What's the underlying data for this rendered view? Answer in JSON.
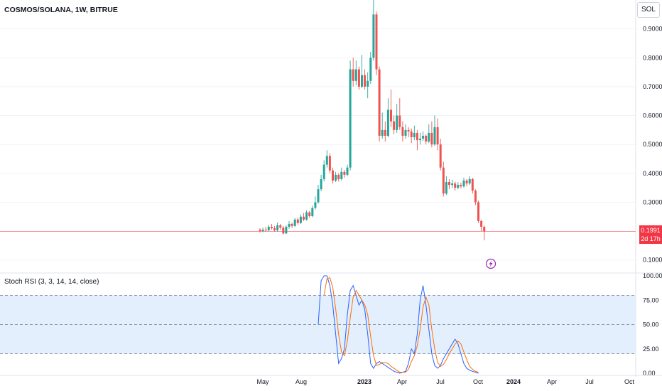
{
  "header": {
    "title": "COSMOS/SOLANA, 1W, BITRUE",
    "symbol_button": "SOL"
  },
  "price_tag": {
    "price": "0.1991",
    "countdown": "2d 17h"
  },
  "indicator": {
    "label": "Stoch RSI (3, 3, 14, 14, close)"
  },
  "colors": {
    "up": "#26a69a",
    "down": "#ef5350",
    "k_line": "#2962ff",
    "d_line": "#ff6d00",
    "band_fill": "#e3effd",
    "last_price_line": "#f23645",
    "flash_icon": "#9c27b0"
  },
  "icons": {
    "flash": "lightning-icon"
  },
  "chart_data": [
    {
      "type": "candlestick",
      "y_ticks": [
        "0.1000",
        "0.2000",
        "0.3000",
        "0.4000",
        "0.5000",
        "0.6000",
        "0.7000",
        "0.8000",
        "0.9000"
      ],
      "y_tick_values": [
        0.1,
        0.2,
        0.3,
        0.4,
        0.5,
        0.6,
        0.7,
        0.8,
        0.9
      ],
      "ylim": [
        0.06,
        1.0
      ],
      "x_ticks": [
        {
          "label": "May",
          "bold": false
        },
        {
          "label": "Aug",
          "bold": false
        },
        {
          "label": "2023",
          "bold": true
        },
        {
          "label": "Apr",
          "bold": false
        },
        {
          "label": "Jul",
          "bold": false
        },
        {
          "label": "Oct",
          "bold": false
        },
        {
          "label": "2024",
          "bold": true
        },
        {
          "label": "Apr",
          "bold": false
        },
        {
          "label": "Jul",
          "bold": false
        },
        {
          "label": "Oct",
          "bold": false
        }
      ],
      "last_price": 0.1991,
      "candles": [
        [
          0.205,
          0.2,
          0.21,
          0.195
        ],
        [
          0.2,
          0.205,
          0.212,
          0.196
        ],
        [
          0.205,
          0.203,
          0.215,
          0.198
        ],
        [
          0.203,
          0.215,
          0.222,
          0.2
        ],
        [
          0.215,
          0.21,
          0.225,
          0.205
        ],
        [
          0.21,
          0.203,
          0.218,
          0.198
        ],
        [
          0.203,
          0.22,
          0.23,
          0.198
        ],
        [
          0.22,
          0.212,
          0.225,
          0.205
        ],
        [
          0.212,
          0.192,
          0.218,
          0.188
        ],
        [
          0.192,
          0.215,
          0.22,
          0.19
        ],
        [
          0.215,
          0.225,
          0.235,
          0.208
        ],
        [
          0.225,
          0.218,
          0.23,
          0.21
        ],
        [
          0.218,
          0.24,
          0.245,
          0.214
        ],
        [
          0.24,
          0.228,
          0.247,
          0.222
        ],
        [
          0.228,
          0.25,
          0.258,
          0.225
        ],
        [
          0.25,
          0.24,
          0.262,
          0.235
        ],
        [
          0.24,
          0.265,
          0.272,
          0.236
        ],
        [
          0.265,
          0.252,
          0.27,
          0.246
        ],
        [
          0.252,
          0.28,
          0.288,
          0.248
        ],
        [
          0.28,
          0.3,
          0.32,
          0.275
        ],
        [
          0.3,
          0.345,
          0.36,
          0.295
        ],
        [
          0.345,
          0.38,
          0.395,
          0.338
        ],
        [
          0.38,
          0.43,
          0.445,
          0.372
        ],
        [
          0.43,
          0.46,
          0.48,
          0.42
        ],
        [
          0.46,
          0.41,
          0.47,
          0.4
        ],
        [
          0.41,
          0.375,
          0.42,
          0.365
        ],
        [
          0.375,
          0.395,
          0.405,
          0.37
        ],
        [
          0.395,
          0.38,
          0.4,
          0.372
        ],
        [
          0.38,
          0.405,
          0.42,
          0.375
        ],
        [
          0.405,
          0.395,
          0.412,
          0.385
        ],
        [
          0.395,
          0.42,
          0.43,
          0.39
        ],
        [
          0.42,
          0.76,
          0.79,
          0.41
        ],
        [
          0.76,
          0.72,
          0.8,
          0.7
        ],
        [
          0.72,
          0.76,
          0.79,
          0.705
        ],
        [
          0.76,
          0.7,
          0.77,
          0.69
        ],
        [
          0.7,
          0.74,
          0.81,
          0.695
        ],
        [
          0.74,
          0.7,
          0.76,
          0.69
        ],
        [
          0.7,
          0.72,
          0.75,
          0.66
        ],
        [
          0.72,
          0.8,
          0.82,
          0.71
        ],
        [
          0.8,
          0.95,
          1.0,
          0.79
        ],
        [
          0.95,
          0.76,
          0.96,
          0.74
        ],
        [
          0.76,
          0.53,
          0.77,
          0.51
        ],
        [
          0.53,
          0.55,
          0.61,
          0.52
        ],
        [
          0.55,
          0.53,
          0.58,
          0.51
        ],
        [
          0.53,
          0.62,
          0.66,
          0.525
        ],
        [
          0.62,
          0.58,
          0.69,
          0.56
        ],
        [
          0.58,
          0.55,
          0.6,
          0.535
        ],
        [
          0.55,
          0.6,
          0.64,
          0.54
        ],
        [
          0.6,
          0.56,
          0.66,
          0.55
        ],
        [
          0.56,
          0.53,
          0.58,
          0.51
        ],
        [
          0.53,
          0.55,
          0.57,
          0.52
        ],
        [
          0.55,
          0.545,
          0.56,
          0.525
        ],
        [
          0.545,
          0.525,
          0.555,
          0.505
        ],
        [
          0.525,
          0.54,
          0.565,
          0.515
        ],
        [
          0.54,
          0.515,
          0.55,
          0.48
        ],
        [
          0.515,
          0.52,
          0.54,
          0.5
        ],
        [
          0.52,
          0.53,
          0.545,
          0.512
        ],
        [
          0.53,
          0.51,
          0.535,
          0.5
        ],
        [
          0.51,
          0.54,
          0.57,
          0.505
        ],
        [
          0.54,
          0.5,
          0.58,
          0.49
        ],
        [
          0.5,
          0.56,
          0.6,
          0.495
        ],
        [
          0.56,
          0.5,
          0.59,
          0.48
        ],
        [
          0.5,
          0.42,
          0.52,
          0.41
        ],
        [
          0.42,
          0.33,
          0.44,
          0.32
        ],
        [
          0.33,
          0.37,
          0.39,
          0.325
        ],
        [
          0.37,
          0.36,
          0.38,
          0.345
        ],
        [
          0.36,
          0.365,
          0.378,
          0.35
        ],
        [
          0.365,
          0.35,
          0.372,
          0.34
        ],
        [
          0.35,
          0.36,
          0.37,
          0.345
        ],
        [
          0.36,
          0.355,
          0.368,
          0.348
        ],
        [
          0.355,
          0.375,
          0.385,
          0.35
        ],
        [
          0.375,
          0.365,
          0.38,
          0.355
        ],
        [
          0.365,
          0.38,
          0.39,
          0.36
        ],
        [
          0.38,
          0.34,
          0.385,
          0.33
        ],
        [
          0.34,
          0.3,
          0.345,
          0.29
        ],
        [
          0.3,
          0.235,
          0.305,
          0.228
        ],
        [
          0.235,
          0.215,
          0.24,
          0.2
        ],
        [
          0.215,
          0.199,
          0.22,
          0.168
        ]
      ]
    },
    {
      "type": "line",
      "name": "Stoch RSI (3, 3, 14, 14, close)",
      "y_ticks": [
        "0.00",
        "25.00",
        "50.00",
        "75.00",
        "100.00"
      ],
      "y_tick_values": [
        0,
        25,
        50,
        75,
        100
      ],
      "ylim": [
        0,
        100
      ],
      "levels": [
        20,
        50,
        80
      ],
      "start_index": 20,
      "series": [
        {
          "values": [
            50,
            95,
            100,
            100,
            90,
            70,
            40,
            10,
            15,
            25,
            60,
            85,
            90,
            80,
            70,
            75,
            65,
            40,
            10,
            5,
            10,
            12,
            10,
            8,
            6,
            4,
            2,
            1,
            0,
            1,
            2,
            10,
            25,
            20,
            40,
            75,
            90,
            70,
            45,
            20,
            8,
            5,
            8,
            15,
            20,
            25,
            30,
            35,
            30,
            20,
            10,
            5,
            3,
            2,
            1,
            0
          ]
        },
        {
          "values": [
            null,
            null,
            80,
            97,
            98,
            88,
            66,
            40,
            22,
            18,
            33,
            57,
            78,
            85,
            80,
            75,
            70,
            60,
            38,
            18,
            8,
            9,
            11,
            11,
            10,
            7,
            5,
            3,
            1,
            1,
            1,
            4,
            12,
            18,
            28,
            45,
            68,
            78,
            70,
            45,
            25,
            11,
            7,
            9,
            14,
            20,
            25,
            30,
            33,
            30,
            22,
            14,
            7,
            4,
            2,
            1
          ]
        }
      ]
    }
  ]
}
